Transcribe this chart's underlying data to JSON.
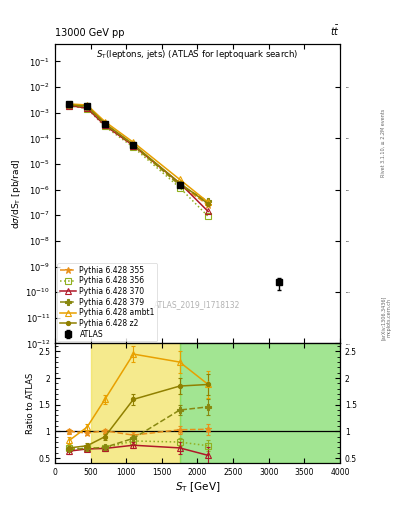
{
  "title_left": "13000 GeV pp",
  "title_right": "tt̅",
  "plot_title": "S_{T}(leptons, jets) (ATLAS for leptoquark search)",
  "watermark": "ATLAS_2019_I1718132",
  "xlabel": "S_{T} [GeV]",
  "ylabel_main": "dσ/dS_{T} [pb/rad]",
  "ylabel_ratio": "Ratio to ATLAS",
  "right_label_top": "Rivet 3.1.10, ≥ 2.2M events",
  "right_label_bot": "[arXiv:1306.3436]",
  "right_label_bot2": "mcplots.cern.ch",
  "atlas_x": [
    200,
    450,
    700,
    1100,
    1750,
    3150
  ],
  "atlas_y": [
    0.0021,
    0.0018,
    0.00035,
    5.5e-05,
    1.5e-06,
    2.4e-10
  ],
  "atlas_yerr_lo": [
    0.0002,
    0.00015,
    3e-05,
    5e-06,
    2e-07,
    1.2e-10
  ],
  "atlas_yerr_hi": [
    0.0002,
    0.00015,
    3e-05,
    5e-06,
    2e-07,
    1.2e-10
  ],
  "py355_x": [
    200,
    450,
    700,
    1100,
    1750,
    2150
  ],
  "py355_y": [
    0.00205,
    0.00175,
    0.000355,
    5.1e-05,
    1.55e-06,
    2.5e-07
  ],
  "py355_color": "#e8901a",
  "py356_x": [
    200,
    450,
    700,
    1100,
    1750,
    2150
  ],
  "py356_y": [
    0.00185,
    0.00145,
    0.00029,
    4.5e-05,
    1.2e-06,
    9e-08
  ],
  "py356_color": "#90b020",
  "py370_x": [
    200,
    450,
    700,
    1100,
    1750,
    2150
  ],
  "py370_y": [
    0.0019,
    0.0015,
    0.00032,
    5.2e-05,
    1.8e-06,
    1.4e-07
  ],
  "py370_color": "#b01828",
  "py379_x": [
    200,
    450,
    700,
    1100,
    1750,
    2150
  ],
  "py379_y": [
    0.002,
    0.0017,
    0.00036,
    5.5e-05,
    1.5e-06,
    3.5e-07
  ],
  "py379_color": "#888810",
  "pyambt1_x": [
    200,
    450,
    700,
    1100,
    1750,
    2150
  ],
  "pyambt1_y": [
    0.0022,
    0.002,
    0.00045,
    7e-05,
    2.5e-06,
    3.2e-07
  ],
  "pyambt1_color": "#e8a000",
  "pyz2_x": [
    200,
    450,
    700,
    1100,
    1750,
    2150
  ],
  "pyz2_y": [
    0.002,
    0.0018,
    0.00038,
    5.8e-05,
    1.8e-06,
    2.8e-07
  ],
  "pyz2_color": "#908000",
  "ratio_py355_x": [
    200,
    450,
    700,
    1100,
    1750,
    2150
  ],
  "ratio_py355_y": [
    1.0,
    0.97,
    1.01,
    0.93,
    1.03,
    1.04
  ],
  "ratio_py355_yerr": [
    0.05,
    0.04,
    0.04,
    0.05,
    0.08,
    0.1
  ],
  "ratio_py356_x": [
    200,
    450,
    700,
    1100,
    1750,
    2150
  ],
  "ratio_py356_y": [
    0.68,
    0.68,
    0.69,
    0.82,
    0.8,
    0.73
  ],
  "ratio_py356_yerr": [
    0.04,
    0.04,
    0.04,
    0.05,
    0.07,
    0.1
  ],
  "ratio_py370_x": [
    200,
    450,
    700,
    1100,
    1750,
    2150
  ],
  "ratio_py370_y": [
    0.63,
    0.67,
    0.68,
    0.74,
    0.69,
    0.55
  ],
  "ratio_py370_yerr": [
    0.05,
    0.04,
    0.04,
    0.06,
    0.12,
    0.15
  ],
  "ratio_py379_x": [
    200,
    450,
    700,
    1100,
    1750,
    2150
  ],
  "ratio_py379_y": [
    0.66,
    0.68,
    0.7,
    0.87,
    1.4,
    1.46
  ],
  "ratio_py379_yerr": [
    0.04,
    0.04,
    0.04,
    0.05,
    0.1,
    0.15
  ],
  "ratio_pyambt1_x": [
    200,
    450,
    700,
    1100,
    1750,
    2150
  ],
  "ratio_pyambt1_y": [
    0.83,
    1.08,
    1.6,
    2.45,
    2.3,
    1.88
  ],
  "ratio_pyambt1_yerr": [
    0.06,
    0.06,
    0.08,
    0.15,
    0.2,
    0.25
  ],
  "ratio_pyz2_x": [
    200,
    450,
    700,
    1100,
    1750,
    2150
  ],
  "ratio_pyz2_y": [
    0.69,
    0.73,
    0.9,
    1.6,
    1.85,
    1.88
  ],
  "ratio_pyz2_yerr": [
    0.05,
    0.05,
    0.06,
    0.1,
    0.15,
    0.2
  ],
  "ylim_main": [
    1e-12,
    0.5
  ],
  "ylim_ratio": [
    0.4,
    2.65
  ],
  "xlim": [
    0,
    4000
  ],
  "band_yellow_xlo": 500,
  "band_yellow_xhi": 1750,
  "band_green_xlo": 1750,
  "band_green_xhi": 4000,
  "band_ylo": 0.4,
  "band_yhi": 2.65
}
